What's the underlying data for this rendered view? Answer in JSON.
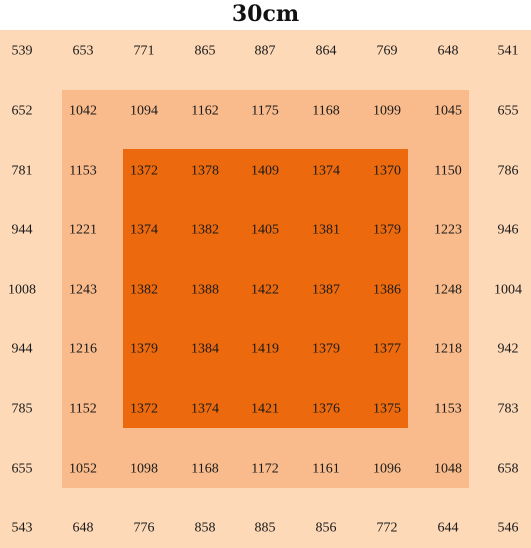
{
  "chart_data": {
    "type": "heatmap",
    "title": "30cm",
    "rows": [
      [
        539,
        653,
        771,
        865,
        887,
        864,
        769,
        648,
        541
      ],
      [
        652,
        1042,
        1094,
        1162,
        1175,
        1168,
        1099,
        1045,
        655
      ],
      [
        781,
        1153,
        1372,
        1378,
        1409,
        1374,
        1370,
        1150,
        786
      ],
      [
        944,
        1221,
        1374,
        1382,
        1405,
        1381,
        1379,
        1223,
        946
      ],
      [
        1008,
        1243,
        1382,
        1388,
        1422,
        1387,
        1386,
        1248,
        1004
      ],
      [
        944,
        1216,
        1379,
        1384,
        1419,
        1379,
        1377,
        1218,
        942
      ],
      [
        785,
        1152,
        1372,
        1374,
        1421,
        1376,
        1375,
        1153,
        783
      ],
      [
        655,
        1052,
        1098,
        1168,
        1172,
        1161,
        1096,
        1048,
        658
      ],
      [
        543,
        648,
        776,
        858,
        885,
        856,
        772,
        644,
        546
      ]
    ],
    "zones": [
      {
        "level": "outer",
        "color": "#fdd9b8",
        "row_range": [
          0,
          8
        ],
        "col_range": [
          0,
          8
        ]
      },
      {
        "level": "middle",
        "color": "#f9bb8b",
        "row_range": [
          1,
          7
        ],
        "col_range": [
          1,
          7
        ]
      },
      {
        "level": "inner",
        "color": "#ec690d",
        "row_range": [
          2,
          6
        ],
        "col_range": [
          2,
          6
        ]
      }
    ]
  }
}
